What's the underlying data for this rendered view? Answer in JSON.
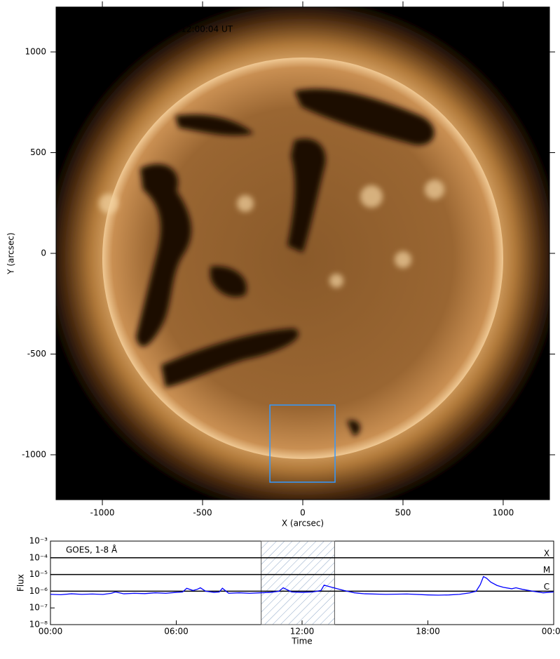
{
  "chart_data": [
    {
      "type": "image",
      "annotation": "AIA 0193, 9-Mar-2026, 12:00:04 UT",
      "xlabel": "X (arcsec)",
      "ylabel": "Y (arcsec)",
      "xlim": [
        -1231,
        1231
      ],
      "ylim": [
        -1223,
        1223
      ],
      "xticks": [
        -1000,
        -500,
        0,
        500,
        1000
      ],
      "yticks": [
        -1000,
        -500,
        0,
        500,
        1000
      ],
      "box": {
        "x": [
          -164,
          161
        ],
        "y": [
          -1136,
          -753
        ],
        "color": "#3399ff"
      }
    },
    {
      "type": "line",
      "xlabel": "Time",
      "ylabel": "Flux",
      "xlim": [
        0,
        24
      ],
      "ylim": [
        1e-08,
        0.001
      ],
      "log_y": true,
      "xticks": [
        {
          "value": 0,
          "label": "00:00"
        },
        {
          "value": 6,
          "label": "06:00"
        },
        {
          "value": 12,
          "label": "12:00"
        },
        {
          "value": 18,
          "label": "18:00"
        },
        {
          "value": 24,
          "label": "00:00"
        }
      ],
      "yticks": [
        {
          "value": 1e-08,
          "label": "10⁻⁸"
        },
        {
          "value": 1e-07,
          "label": "10⁻⁷"
        },
        {
          "value": 1e-06,
          "label": "10⁻⁶"
        },
        {
          "value": 1e-05,
          "label": "10⁻⁵"
        },
        {
          "value": 0.0001,
          "label": "10⁻⁴"
        },
        {
          "value": 0.001,
          "label": "10⁻³"
        }
      ],
      "window": [
        10.05,
        13.55
      ],
      "flare_classes": [
        {
          "label": "X",
          "value": 0.0001
        },
        {
          "label": "M",
          "value": 1e-05
        },
        {
          "label": "C",
          "value": 1e-06
        }
      ],
      "x": [
        0,
        0.5,
        1,
        1.5,
        2,
        2.5,
        2.9,
        3.1,
        3.5,
        4,
        4.5,
        5,
        5.5,
        6,
        6.3,
        6.5,
        6.8,
        7,
        7.15,
        7.4,
        7.8,
        8.05,
        8.2,
        8.5,
        9,
        9.5,
        10,
        10.5,
        10.9,
        11.1,
        11.5,
        12,
        12.5,
        12.9,
        13.05,
        13.5,
        14,
        14.5,
        15,
        16,
        17,
        18,
        18.5,
        19,
        19.5,
        20,
        20.3,
        20.5,
        20.65,
        20.8,
        21,
        21.3,
        21.6,
        22,
        22.2,
        22.5,
        23,
        23.5,
        24
      ],
      "series": [
        {
          "name": "GOES, 1-8 Å",
          "color": "#0000ff",
          "values": [
            6.5e-07,
            6.2e-07,
            7e-07,
            6.5e-07,
            6.8e-07,
            6.4e-07,
            7.5e-07,
            9e-07,
            7e-07,
            7.5e-07,
            7.2e-07,
            8e-07,
            7.5e-07,
            8.5e-07,
            9e-07,
            1.5e-06,
            1.1e-06,
            1.3e-06,
            1.6e-06,
            1e-06,
            8.5e-07,
            9e-07,
            1.5e-06,
            7.5e-07,
            8e-07,
            7.5e-07,
            8e-07,
            8.5e-07,
            1e-06,
            1.6e-06,
            9e-07,
            8.5e-07,
            9e-07,
            1.1e-06,
            2.3e-06,
            1.6e-06,
            1.1e-06,
            8e-07,
            7e-07,
            6.5e-07,
            6.8e-07,
            6e-07,
            5.8e-07,
            6e-07,
            6.5e-07,
            8e-07,
            1e-06,
            2.5e-06,
            7.5e-06,
            6e-06,
            3.5e-06,
            2.2e-06,
            1.7e-06,
            1.4e-06,
            1.6e-06,
            1.3e-06,
            1e-06,
            8e-07,
            9e-07
          ]
        }
      ]
    }
  ]
}
